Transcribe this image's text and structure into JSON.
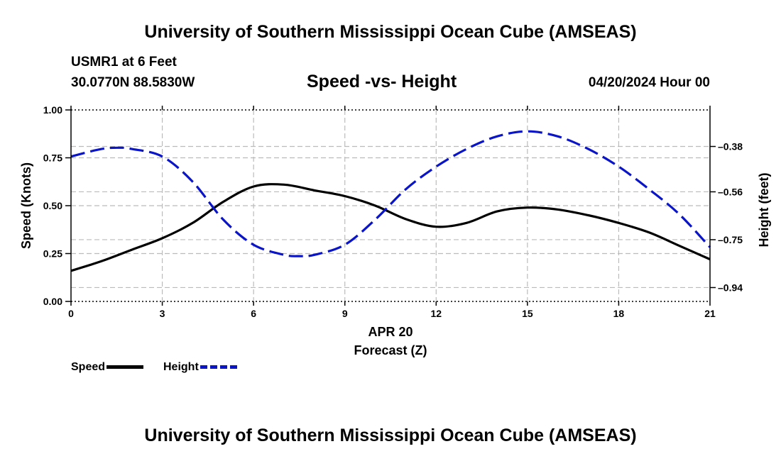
{
  "header": {
    "title": "University of Southern Mississippi Ocean Cube (AMSEAS)",
    "station": "USMR1 at 6 Feet",
    "coordinates": "30.0770N  88.5830W",
    "subtitle": "Speed -vs- Height",
    "datetime": "04/20/2024 Hour 00"
  },
  "footer": {
    "title": "University of Southern Mississippi Ocean Cube (AMSEAS)"
  },
  "legend": {
    "speed_label": "Speed",
    "height_label": "Height"
  },
  "colors": {
    "speed": "#000000",
    "height": "#0a14c8",
    "grid": "#bbbbbb"
  },
  "chart_data": {
    "type": "line",
    "title": "Speed -vs- Height",
    "xlabel": "Forecast (Z)",
    "xdate": "APR 20",
    "ylabel": "Speed (Knots)",
    "y2label": "Height (feet)",
    "xlim": [
      0,
      21
    ],
    "xticks": [
      0,
      3,
      6,
      9,
      12,
      15,
      18,
      21
    ],
    "ylim": [
      0,
      1
    ],
    "yticks": [
      "0.00",
      "0.25",
      "0.50",
      "0.75",
      "1.00"
    ],
    "y2lim": [
      -0.995,
      -0.235
    ],
    "y2ticks": [
      "-0.38",
      "-0.56",
      "-0.75",
      "-0.94"
    ],
    "series": [
      {
        "name": "Speed",
        "axis": "left",
        "style": "solid",
        "x": [
          0,
          1,
          2,
          3,
          4,
          5,
          6,
          7,
          8,
          9,
          10,
          11,
          12,
          13,
          14,
          15,
          16,
          17,
          18,
          19,
          20,
          21
        ],
        "values": [
          0.16,
          0.21,
          0.27,
          0.33,
          0.41,
          0.52,
          0.6,
          0.61,
          0.58,
          0.55,
          0.5,
          0.43,
          0.39,
          0.41,
          0.47,
          0.49,
          0.48,
          0.45,
          0.41,
          0.36,
          0.29,
          0.22
        ]
      },
      {
        "name": "Height",
        "axis": "right",
        "style": "dashed",
        "x": [
          0,
          1,
          1.6,
          2,
          3,
          4,
          5,
          6,
          7,
          7.5,
          8,
          9,
          10,
          11,
          12,
          13,
          14,
          15,
          16,
          17,
          18,
          19,
          20,
          21
        ],
        "values": [
          -0.42,
          -0.39,
          -0.385,
          -0.39,
          -0.42,
          -0.52,
          -0.67,
          -0.77,
          -0.81,
          -0.815,
          -0.81,
          -0.77,
          -0.67,
          -0.55,
          -0.46,
          -0.39,
          -0.34,
          -0.32,
          -0.34,
          -0.39,
          -0.46,
          -0.55,
          -0.65,
          -0.78
        ]
      }
    ]
  }
}
